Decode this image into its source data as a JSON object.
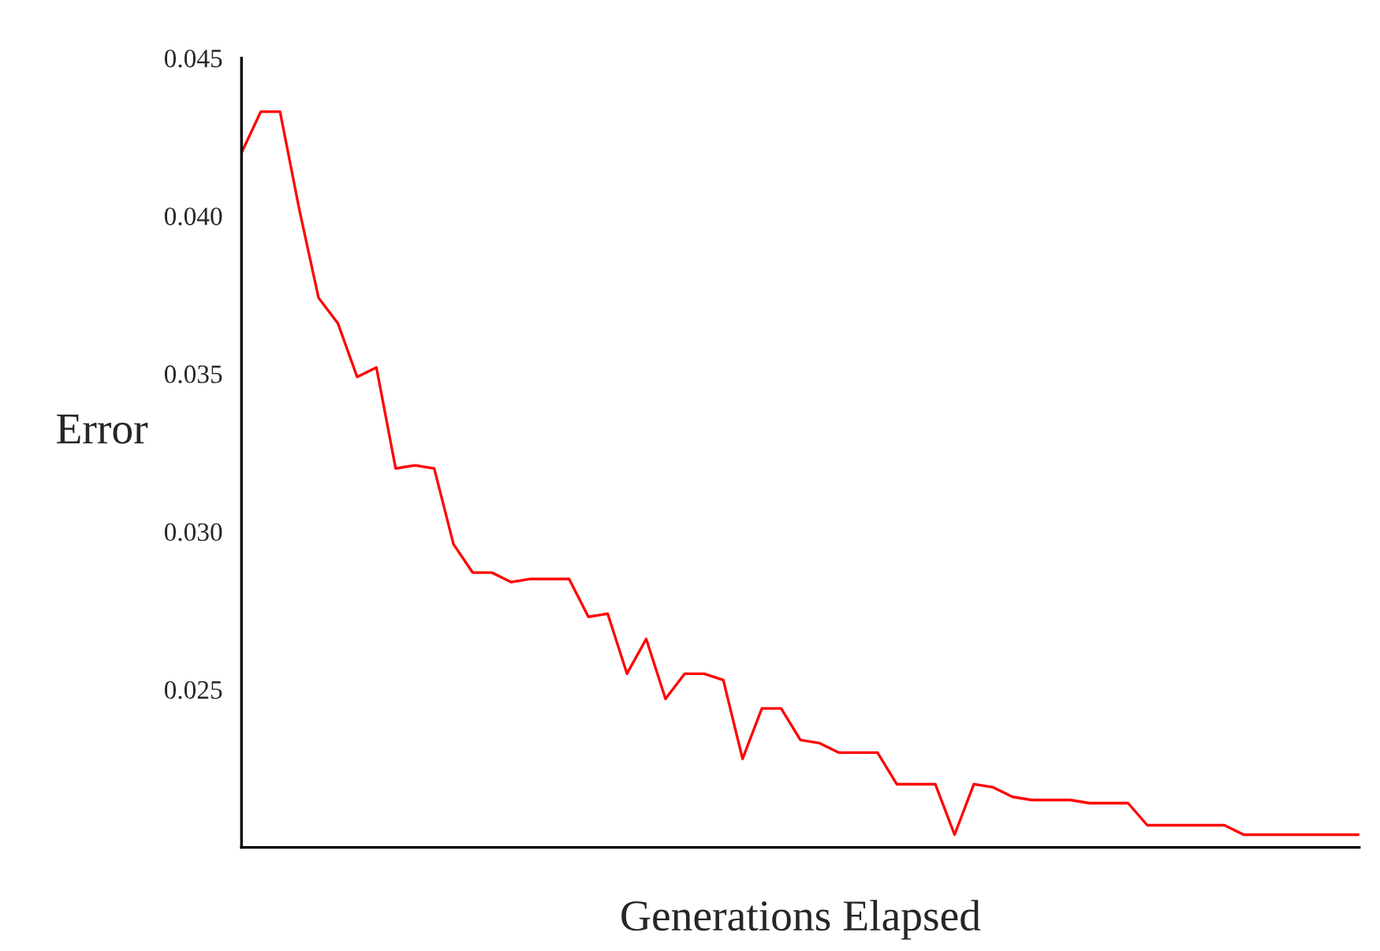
{
  "chart_data": {
    "type": "line",
    "xlabel": "Generations Elapsed",
    "ylabel": "Error",
    "categories": [
      null,
      null,
      null,
      null,
      null,
      null,
      null,
      null,
      null,
      null,
      null,
      null,
      null,
      null,
      null,
      null,
      null,
      null,
      null,
      null,
      null,
      null,
      null,
      null,
      null,
      null,
      null,
      null,
      null,
      null,
      null,
      null,
      null,
      null,
      null,
      null,
      null,
      null,
      null,
      null,
      null,
      null,
      null,
      null,
      null,
      null,
      null,
      null,
      null,
      null,
      null,
      null,
      null,
      null,
      null,
      null,
      null,
      null,
      null
    ],
    "series": [
      {
        "color": "#ff0000",
        "values": [
          0.042,
          0.0433,
          0.0433,
          0.0402,
          0.0374,
          0.0366,
          0.0349,
          0.0352,
          0.032,
          0.0321,
          0.032,
          0.0296,
          0.0287,
          0.0287,
          0.0284,
          0.0285,
          0.0285,
          0.0285,
          0.0273,
          0.0274,
          0.0255,
          0.0266,
          0.0247,
          0.0255,
          0.0255,
          0.0253,
          0.0228,
          0.0244,
          0.0244,
          0.0234,
          0.0233,
          0.023,
          0.023,
          0.023,
          0.022,
          0.022,
          0.022,
          0.0204,
          0.022,
          0.0219,
          0.0216,
          0.0215,
          0.0215,
          0.0215,
          0.0214,
          0.0214,
          0.0214,
          0.0207,
          0.0207,
          0.0207,
          0.0207,
          0.0207,
          0.0204,
          0.0204,
          0.0204,
          0.0204,
          0.0204,
          0.0204,
          0.0204
        ]
      }
    ],
    "ylim": [
      0.02,
      0.045
    ],
    "yticks": [
      {
        "value": 0.025,
        "label": "0.025"
      },
      {
        "value": 0.03,
        "label": "0.030"
      },
      {
        "value": 0.035,
        "label": "0.035"
      },
      {
        "value": 0.04,
        "label": "0.040"
      },
      {
        "value": 0.045,
        "label": "0.045"
      }
    ],
    "tick_labels": "y",
    "grid": false,
    "legend": false,
    "marker": "none",
    "line_style": "solid"
  }
}
